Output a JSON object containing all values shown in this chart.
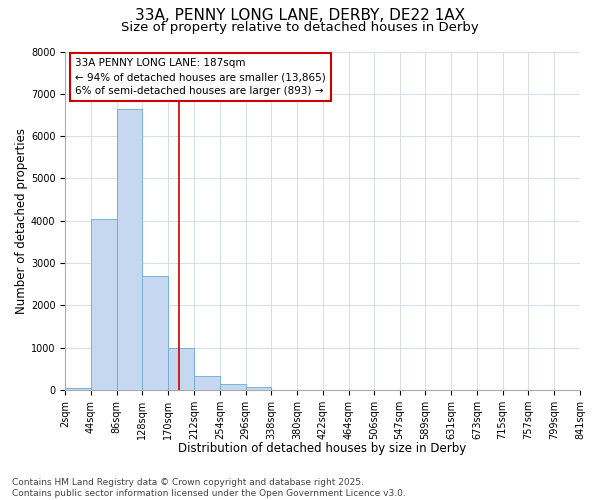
{
  "title_line1": "33A, PENNY LONG LANE, DERBY, DE22 1AX",
  "title_line2": "Size of property relative to detached houses in Derby",
  "xlabel": "Distribution of detached houses by size in Derby",
  "ylabel": "Number of detached properties",
  "bar_color": "#c5d8f0",
  "bar_edge_color": "#6aaad4",
  "bin_edges": [
    2,
    44,
    86,
    128,
    170,
    212,
    254,
    296,
    338,
    380,
    422,
    464,
    506,
    547,
    589,
    631,
    673,
    715,
    757,
    799,
    841
  ],
  "bin_labels": [
    "2sqm",
    "44sqm",
    "86sqm",
    "128sqm",
    "170sqm",
    "212sqm",
    "254sqm",
    "296sqm",
    "338sqm",
    "380sqm",
    "422sqm",
    "464sqm",
    "506sqm",
    "547sqm",
    "589sqm",
    "631sqm",
    "673sqm",
    "715sqm",
    "757sqm",
    "799sqm",
    "841sqm"
  ],
  "bar_heights": [
    50,
    4050,
    6650,
    2700,
    1000,
    320,
    130,
    80,
    0,
    0,
    0,
    0,
    0,
    0,
    0,
    0,
    0,
    0,
    0,
    0
  ],
  "ylim": [
    0,
    8000
  ],
  "yticks": [
    0,
    1000,
    2000,
    3000,
    4000,
    5000,
    6000,
    7000,
    8000
  ],
  "property_size_sqm": 187,
  "vline_color": "#cc0000",
  "annotation_text": "33A PENNY LONG LANE: 187sqm\n← 94% of detached houses are smaller (13,865)\n6% of semi-detached houses are larger (893) →",
  "annotation_box_color": "#ffffff",
  "annotation_box_edge_color": "#cc0000",
  "footnote": "Contains HM Land Registry data © Crown copyright and database right 2025.\nContains public sector information licensed under the Open Government Licence v3.0.",
  "background_color": "#ffffff",
  "plot_bg_color": "#ffffff",
  "grid_color": "#d0d8e8",
  "title_fontsize": 11,
  "subtitle_fontsize": 9.5,
  "axis_label_fontsize": 8.5,
  "tick_fontsize": 7,
  "annotation_fontsize": 7.5,
  "footnote_fontsize": 6.5
}
